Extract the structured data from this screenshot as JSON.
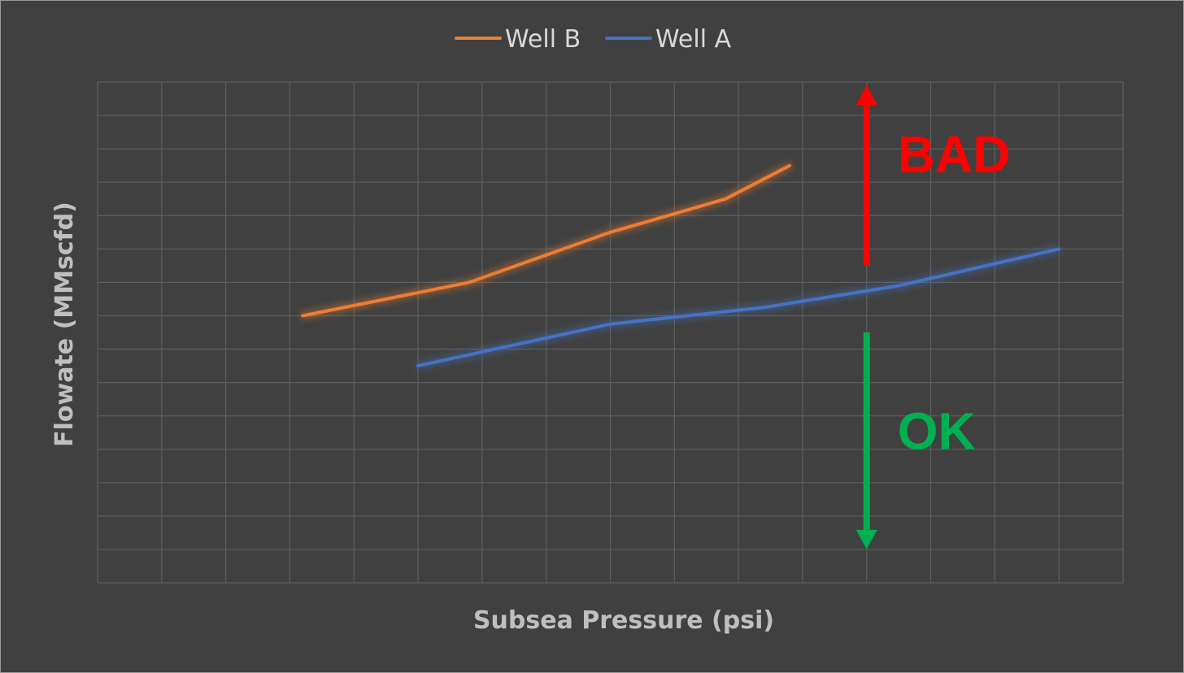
{
  "chart_data": {
    "type": "line",
    "title": "",
    "xlabel": "Subsea Pressure (psi)",
    "ylabel": "Flowate (MMscfd)",
    "x_range": [
      0,
      16
    ],
    "y_range": [
      0,
      15
    ],
    "grid": true,
    "tick_labels_shown": false,
    "legend_position": "top",
    "series": [
      {
        "name": "Well B",
        "color": "#ed7d31",
        "points": [
          [
            3.2,
            8.0
          ],
          [
            5.8,
            9.0
          ],
          [
            8.0,
            10.5
          ],
          [
            9.8,
            11.5
          ],
          [
            10.8,
            12.5
          ]
        ]
      },
      {
        "name": "Well A",
        "color": "#4472c4",
        "points": [
          [
            5.0,
            6.5
          ],
          [
            8.0,
            7.75
          ],
          [
            10.4,
            8.25
          ],
          [
            12.5,
            8.9
          ],
          [
            15.0,
            10.0
          ]
        ]
      }
    ],
    "annotations": [
      {
        "text": "BAD",
        "color": "#ff0000",
        "arrow": "up",
        "x": 12.0,
        "y_from": 9.5,
        "y_to": 14.9
      },
      {
        "text": "OK",
        "color": "#00b050",
        "arrow": "down",
        "x": 12.0,
        "y_from": 7.5,
        "y_to": 1.0
      }
    ]
  }
}
